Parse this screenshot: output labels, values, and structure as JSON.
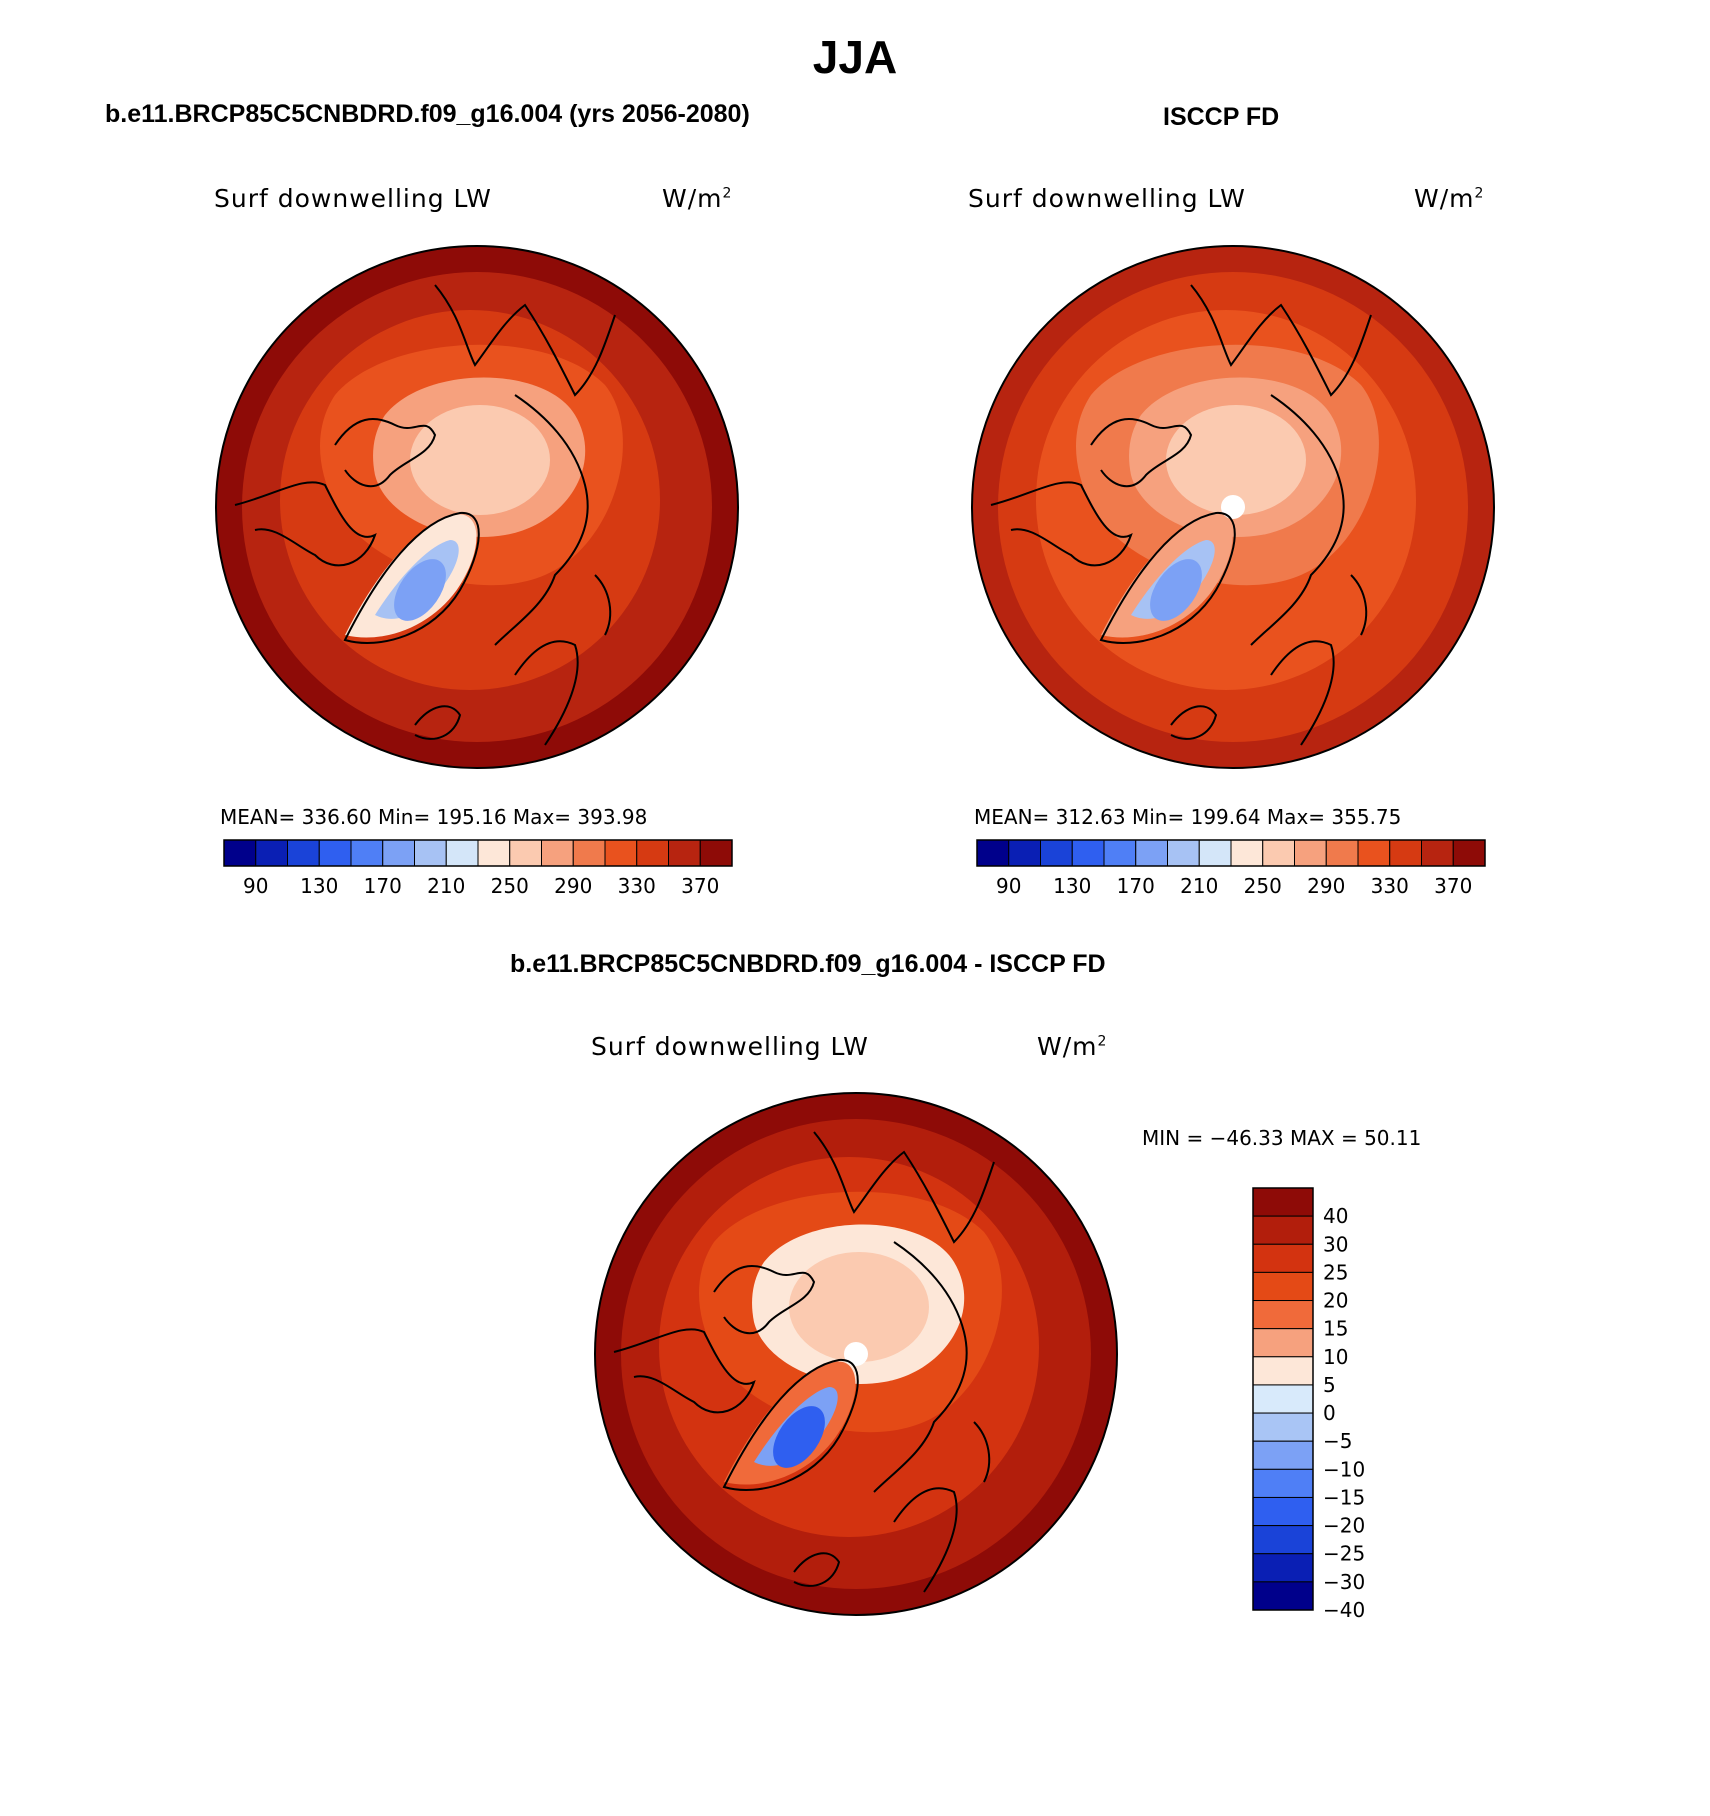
{
  "title": "JJA",
  "panels": {
    "model": {
      "subtitle": "b.e11.BRCP85C5CNBDRD.f09_g16.004 (yrs 2056-2080)",
      "variable": "Surf downwelling LW",
      "units_base": "W/m",
      "units_exp": "2",
      "stats": "MEAN= 336.60   Min= 195.16   Max= 393.98"
    },
    "obs": {
      "subtitle": "ISCCP FD",
      "variable": "Surf downwelling LW",
      "units_base": "W/m",
      "units_exp": "2",
      "stats": "MEAN= 312.63   Min= 199.64   Max= 355.75"
    },
    "diff": {
      "subtitle": "b.e11.BRCP85C5CNBDRD.f09_g16.004 - ISCCP FD",
      "variable": "Surf downwelling LW",
      "units_base": "W/m",
      "units_exp": "2",
      "minmax": "MIN = −46.33 MAX =   50.11"
    }
  },
  "colorbars": {
    "absolute": {
      "colors": [
        "#00008b",
        "#0a1fb4",
        "#1a43d8",
        "#2f5ff0",
        "#4f7ff6",
        "#7ca1f5",
        "#a7c2f4",
        "#d4e6f9",
        "#fde7d8",
        "#fbcab0",
        "#f6a17e",
        "#f07a4c",
        "#e9521e",
        "#d63a12",
        "#b72410",
        "#8e0b07"
      ],
      "ticks": [
        "90",
        "130",
        "170",
        "210",
        "250",
        "290",
        "330",
        "370"
      ]
    },
    "difference": {
      "colors": [
        "#8e0b07",
        "#b21e0c",
        "#d33310",
        "#e44a16",
        "#f06a3a",
        "#f6a17e",
        "#fde7d8",
        "#d8eafb",
        "#a9c5f5",
        "#7ca1f5",
        "#4f7ff6",
        "#2f5ff0",
        "#1a43d8",
        "#0a1fb4",
        "#00008b"
      ],
      "ticks": [
        "40",
        "30",
        "25",
        "20",
        "15",
        "10",
        "5",
        "0",
        "−5",
        "−10",
        "−15",
        "−20",
        "−25",
        "−30",
        "−40"
      ]
    }
  },
  "map_colors": {
    "model": {
      "base": "#d63a12",
      "outer": "#b72410",
      "edge": "#8e0b07",
      "inner": "#e9521e",
      "polar": "#f6a17e",
      "polar_core": "#fbcab0",
      "greenland": "#fde7d8",
      "ice": "#a7c2f4",
      "ice_core": "#7ca1f5"
    },
    "obs": {
      "base": "#e9521e",
      "outer": "#d63a12",
      "edge": "#b72410",
      "inner": "#f07a4c",
      "polar": "#f6a17e",
      "polar_core": "#fbcab0",
      "greenland": "#f6a17e",
      "ice": "#a7c2f4",
      "ice_core": "#7ca1f5"
    },
    "diff": {
      "base": "#d33310",
      "outer": "#b21e0c",
      "edge": "#8e0b07",
      "inner": "#e44a16",
      "polar": "#fde7d8",
      "polar_core": "#fbcab0",
      "greenland": "#f06a3a",
      "ice": "#7ca1f5",
      "ice_core": "#2f5ff0"
    }
  }
}
